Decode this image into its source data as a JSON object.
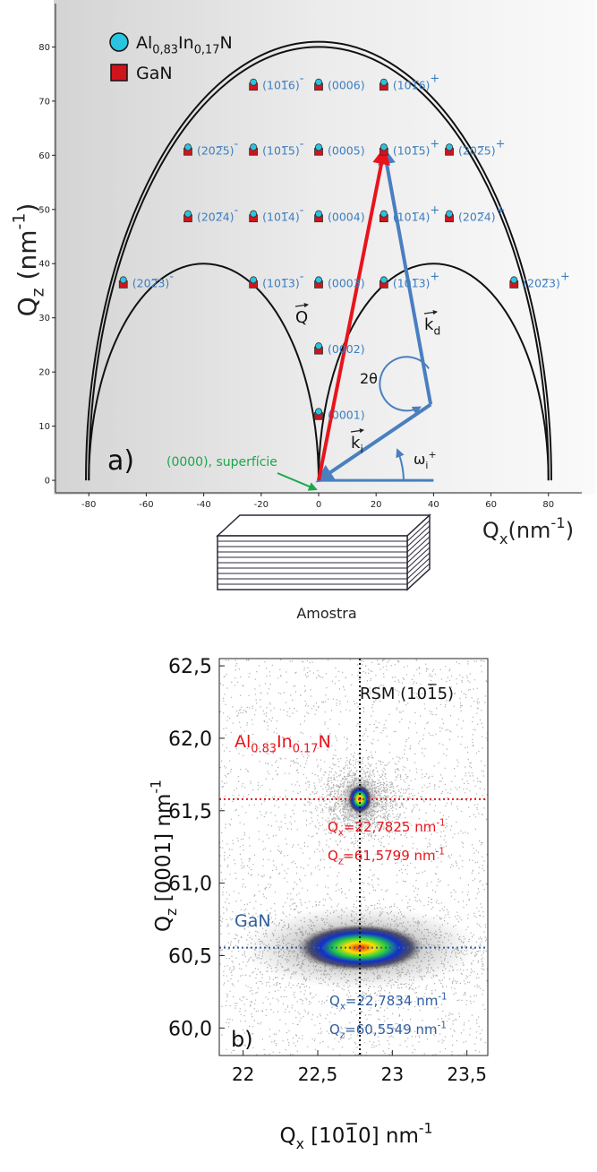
{
  "chart_data": [
    {
      "type": "scatter",
      "panel_label": "a)",
      "xlabel": [
        "Q",
        {
          "sub": "x"
        },
        "(nm",
        {
          "sup": "-1"
        },
        ")"
      ],
      "ylabel": [
        "Q",
        {
          "sub": "z"
        },
        " (nm",
        {
          "sup": "-1"
        },
        ")"
      ],
      "xlim": [
        -91.6,
        91.6
      ],
      "ylim": [
        -2.3,
        88
      ],
      "xticks": [
        -80,
        -60,
        -40,
        -20,
        0,
        20,
        40,
        60,
        80
      ],
      "yticks": [
        0,
        10,
        20,
        30,
        40,
        50,
        60,
        70,
        80
      ],
      "legend": [
        {
          "name": [
            "Al",
            {
              "sub": "0,83"
            },
            "In",
            {
              "sub": "0,17"
            },
            "N"
          ],
          "color": "#29c4e0",
          "marker": "circle"
        },
        {
          "name": [
            "GaN"
          ],
          "color": "#d0141c",
          "marker": "square"
        }
      ],
      "label_color": "#3c7ec0",
      "points": [
        {
          "label": "(101̅6)",
          "sign": "-",
          "x": -22.7,
          "y": 73
        },
        {
          "label": "(0006)",
          "x": 0,
          "y": 73
        },
        {
          "label": "(101̅6)",
          "sign": "+",
          "x": 22.7,
          "y": 73
        },
        {
          "label": "(202̅5)",
          "sign": "-",
          "x": -45.5,
          "y": 61
        },
        {
          "label": "(101̅5)",
          "sign": "-",
          "x": -22.7,
          "y": 61
        },
        {
          "label": "(0005)",
          "x": 0,
          "y": 61
        },
        {
          "label": "(101̅5)",
          "sign": "+",
          "x": 22.7,
          "y": 61
        },
        {
          "label": "(202̅5)",
          "sign": "+",
          "x": 45.5,
          "y": 61
        },
        {
          "label": "(202̅4)",
          "sign": "-",
          "x": -45.5,
          "y": 48.7
        },
        {
          "label": "(101̅4)",
          "sign": "-",
          "x": -22.7,
          "y": 48.7
        },
        {
          "label": "(0004)",
          "x": 0,
          "y": 48.7
        },
        {
          "label": "(101̅4)",
          "sign": "+",
          "x": 22.7,
          "y": 48.7
        },
        {
          "label": "(202̅4)",
          "sign": "+",
          "x": 45.5,
          "y": 48.7
        },
        {
          "label": "(202̅3)",
          "sign": "-",
          "x": -68,
          "y": 36.5
        },
        {
          "label": "(101̅3)",
          "sign": "-",
          "x": -22.7,
          "y": 36.5
        },
        {
          "label": "(0003)",
          "x": 0,
          "y": 36.5
        },
        {
          "label": "(101̅3)",
          "sign": "+",
          "x": 22.7,
          "y": 36.5
        },
        {
          "label": "(202̅3)",
          "sign": "+",
          "x": 68,
          "y": 36.5
        },
        {
          "label": "(0002)",
          "x": 0,
          "y": 24.3
        },
        {
          "label": "(0001)",
          "x": 0,
          "y": 12.2
        }
      ],
      "limits": [
        {
          "center": 0,
          "radius": 80
        },
        {
          "center": 0,
          "radius": 81
        },
        {
          "center": -40,
          "radius": 40
        },
        {
          "center": 40,
          "radius": 40
        }
      ],
      "vectors": [
        {
          "label": [
            "k",
            {
              "sub": "i"
            }
          ],
          "from": [
            39,
            14
          ],
          "to": [
            0,
            0
          ],
          "color": "#4a7fc0"
        },
        {
          "label": [
            "k",
            {
              "sub": "d"
            }
          ],
          "from": [
            39,
            14
          ],
          "to": [
            22.8,
            61
          ],
          "color": "#4a7fc0"
        },
        {
          "label": [
            "Q"
          ],
          "from": [
            0,
            0
          ],
          "to": [
            22.8,
            61
          ],
          "color": "#e8141c"
        }
      ],
      "annotations": {
        "two_theta": "2θ",
        "omega": [
          "ω",
          {
            "sub": "i"
          },
          {
            "sup": "+"
          }
        ],
        "surface": "(0000), superfície",
        "sample": "Amostra"
      }
    },
    {
      "type": "rsm",
      "panel_label": "b)",
      "title": "RSM (101̅5)",
      "xlabel": [
        "Q",
        {
          "sub": "x"
        },
        " [101̅0] nm",
        {
          "sup": "-1"
        }
      ],
      "ylabel": [
        "Q",
        {
          "sub": "z"
        },
        " [0001] nm",
        {
          "sup": "-1"
        }
      ],
      "xlim": [
        21.84,
        23.64
      ],
      "ylim": [
        59.81,
        62.55
      ],
      "xticks": [
        22,
        {
          "value": 22.5,
          "label": "22,5"
        },
        23,
        {
          "value": 23.5,
          "label": "23,5"
        }
      ],
      "yticks": [
        {
          "value": 60,
          "label": "60,0"
        },
        {
          "value": 60.5,
          "label": "60,5"
        },
        {
          "value": 61,
          "label": "61,0"
        },
        {
          "value": 61.5,
          "label": "61,5"
        },
        {
          "value": 62,
          "label": "62,0"
        },
        {
          "value": 62.5,
          "label": "62,5"
        }
      ],
      "peaks": [
        {
          "name": [
            "Al",
            {
              "sub": "0.83"
            },
            "In",
            {
              "sub": "0.17"
            },
            "N"
          ],
          "color": "#e8141c",
          "x": 22.7825,
          "y": 61.5799,
          "x_label": [
            "Q",
            {
              "sub": "x"
            },
            "=22,7825 nm",
            {
              "sup": "-1"
            }
          ],
          "y_label": [
            "Q",
            {
              "sub": "z"
            },
            "=61,5799 nm",
            {
              "sup": "-1"
            }
          ]
        },
        {
          "name": [
            "GaN"
          ],
          "color": "#2f5f9e",
          "x": 22.7834,
          "y": 60.5549,
          "x_label": [
            "Q",
            {
              "sub": "x"
            },
            "=22,7834 nm",
            {
              "sup": "-1"
            }
          ],
          "y_label": [
            "Q",
            {
              "sub": "z"
            },
            "=60,5549 nm",
            {
              "sup": "-1"
            }
          ]
        }
      ]
    }
  ]
}
